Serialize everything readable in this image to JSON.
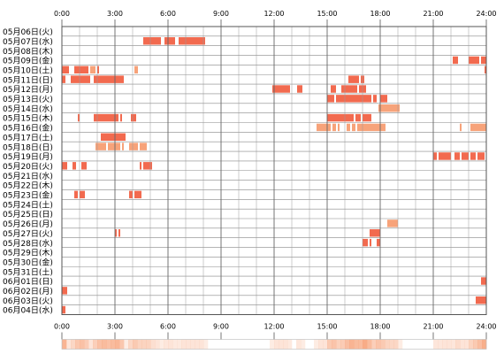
{
  "chart_data": {
    "type": "heatmap",
    "x_ticks": [
      "0:00",
      "3:00",
      "6:00",
      "9:00",
      "12:00",
      "15:00",
      "18:00",
      "21:00",
      "24:00"
    ],
    "x_range_hours": [
      0,
      24
    ],
    "grid": true,
    "colors": {
      "active_dark": "#f26a4f",
      "active_light": "#f7a37a",
      "grid": "#888888",
      "border": "#555555"
    },
    "rows": [
      {
        "label": "05月06日(火)",
        "segments": []
      },
      {
        "label": "05月07日(水)",
        "segments": [
          [
            4.6,
            5.6,
            "d"
          ],
          [
            5.8,
            6.4,
            "d"
          ],
          [
            6.6,
            7.0,
            "d"
          ],
          [
            7.0,
            8.1,
            "d"
          ]
        ]
      },
      {
        "label": "05月08日(木)",
        "segments": []
      },
      {
        "label": "05月09日(金)",
        "segments": [
          [
            22.1,
            22.4,
            "d"
          ],
          [
            23.0,
            23.6,
            "d"
          ],
          [
            23.7,
            24.0,
            "d"
          ]
        ]
      },
      {
        "label": "05月10日(土)",
        "segments": [
          [
            0.0,
            0.4,
            "d"
          ],
          [
            0.7,
            1.5,
            "d"
          ],
          [
            1.6,
            1.9,
            "l"
          ],
          [
            2.0,
            2.1,
            "d"
          ],
          [
            4.1,
            4.3,
            "l"
          ],
          [
            23.9,
            24.0,
            "d"
          ]
        ]
      },
      {
        "label": "05月11日(日)",
        "segments": [
          [
            0.0,
            0.2,
            "d"
          ],
          [
            0.5,
            1.6,
            "d"
          ],
          [
            1.8,
            3.5,
            "d"
          ],
          [
            16.2,
            16.8,
            "d"
          ],
          [
            16.9,
            17.1,
            "d"
          ]
        ]
      },
      {
        "label": "05月12日(月)",
        "segments": [
          [
            11.9,
            12.9,
            "d"
          ],
          [
            13.3,
            13.6,
            "d"
          ],
          [
            15.2,
            15.5,
            "d"
          ],
          [
            15.8,
            16.7,
            "d"
          ],
          [
            16.8,
            17.2,
            "d"
          ]
        ]
      },
      {
        "label": "05月13日(火)",
        "segments": [
          [
            15.0,
            15.4,
            "d"
          ],
          [
            15.5,
            16.0,
            "d"
          ],
          [
            16.0,
            17.5,
            "d"
          ],
          [
            17.6,
            17.8,
            "d"
          ],
          [
            18.0,
            18.4,
            "d"
          ]
        ]
      },
      {
        "label": "05月14日(水)",
        "segments": [
          [
            17.9,
            19.1,
            "l"
          ]
        ]
      },
      {
        "label": "05月15日(木)",
        "segments": [
          [
            0.9,
            1.0,
            "d"
          ],
          [
            1.8,
            3.2,
            "d"
          ],
          [
            3.3,
            3.4,
            "d"
          ],
          [
            3.9,
            4.2,
            "d"
          ],
          [
            15.0,
            16.5,
            "d"
          ],
          [
            16.6,
            16.9,
            "d"
          ],
          [
            17.0,
            17.5,
            "d"
          ]
        ]
      },
      {
        "label": "05月16日(金)",
        "segments": [
          [
            14.4,
            15.2,
            "l"
          ],
          [
            15.3,
            15.5,
            "l"
          ],
          [
            15.6,
            15.7,
            "l"
          ],
          [
            16.1,
            16.3,
            "l"
          ],
          [
            16.4,
            16.6,
            "l"
          ],
          [
            16.7,
            18.3,
            "l"
          ],
          [
            22.5,
            22.6,
            "l"
          ],
          [
            23.1,
            24.0,
            "l"
          ]
        ]
      },
      {
        "label": "05月17日(土)",
        "segments": [
          [
            2.2,
            3.6,
            "d"
          ]
        ]
      },
      {
        "label": "05月18日(日)",
        "segments": [
          [
            1.9,
            2.5,
            "l"
          ],
          [
            2.6,
            3.3,
            "l"
          ],
          [
            3.4,
            3.5,
            "l"
          ],
          [
            3.8,
            4.3,
            "l"
          ],
          [
            4.4,
            4.8,
            "l"
          ]
        ]
      },
      {
        "label": "05月19日(月)",
        "segments": [
          [
            21.0,
            21.2,
            "d"
          ],
          [
            21.3,
            22.0,
            "d"
          ],
          [
            22.2,
            22.5,
            "d"
          ],
          [
            22.6,
            23.0,
            "d"
          ],
          [
            23.1,
            23.4,
            "d"
          ],
          [
            23.5,
            23.9,
            "d"
          ]
        ]
      },
      {
        "label": "05月20日(火)",
        "segments": [
          [
            0.0,
            0.3,
            "d"
          ],
          [
            0.6,
            0.8,
            "d"
          ],
          [
            1.1,
            1.4,
            "d"
          ],
          [
            4.4,
            4.5,
            "d"
          ],
          [
            4.6,
            5.1,
            "d"
          ]
        ]
      },
      {
        "label": "05月21日(水)",
        "segments": []
      },
      {
        "label": "05月22日(木)",
        "segments": []
      },
      {
        "label": "05月23日(金)",
        "segments": [
          [
            0.7,
            0.9,
            "d"
          ],
          [
            1.0,
            1.3,
            "d"
          ],
          [
            3.8,
            4.0,
            "d"
          ],
          [
            4.1,
            4.5,
            "d"
          ]
        ]
      },
      {
        "label": "05月24日(土)",
        "segments": []
      },
      {
        "label": "05月25日(日)",
        "segments": []
      },
      {
        "label": "05月26日(月)",
        "segments": [
          [
            18.4,
            19.0,
            "l"
          ]
        ]
      },
      {
        "label": "05月27日(火)",
        "segments": [
          [
            3.0,
            3.1,
            "d"
          ],
          [
            3.2,
            3.3,
            "d"
          ],
          [
            17.4,
            18.0,
            "d"
          ]
        ]
      },
      {
        "label": "05月28日(水)",
        "segments": [
          [
            17.0,
            17.3,
            "d"
          ],
          [
            17.4,
            17.5,
            "d"
          ],
          [
            17.8,
            18.0,
            "d"
          ]
        ]
      },
      {
        "label": "05月29日(木)",
        "segments": []
      },
      {
        "label": "05月30日(金)",
        "segments": []
      },
      {
        "label": "05月31日(土)",
        "segments": []
      },
      {
        "label": "06月01日(日)",
        "segments": [
          [
            23.7,
            24.0,
            "d"
          ]
        ]
      },
      {
        "label": "06月02日(月)",
        "segments": [
          [
            0.0,
            0.3,
            "d"
          ]
        ]
      },
      {
        "label": "06月03日(火)",
        "segments": [
          [
            23.4,
            24.0,
            "d"
          ]
        ]
      },
      {
        "label": "06月04日(水)",
        "segments": [
          [
            0.0,
            0.2,
            "d"
          ]
        ]
      }
    ]
  }
}
